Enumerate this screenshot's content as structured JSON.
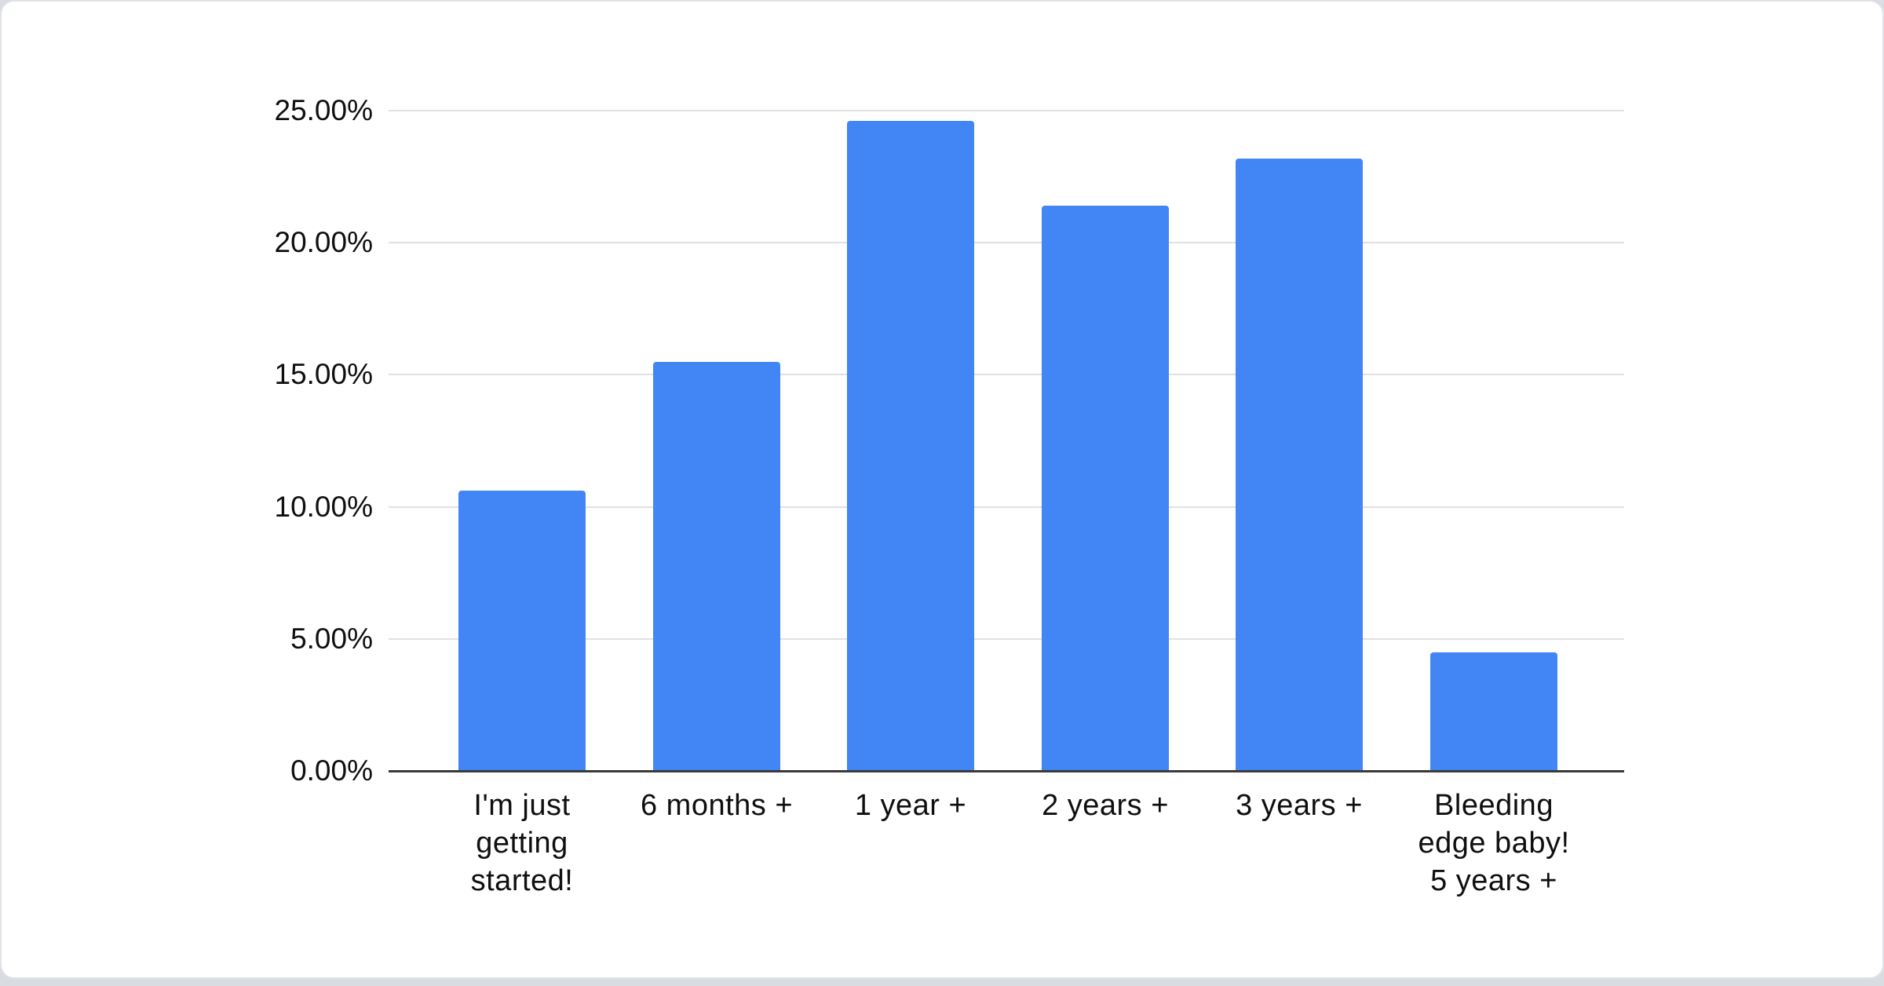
{
  "page": {
    "background_color": "#d9dce0",
    "card_background": "#ffffff",
    "card_border_color": "#dfe2e6"
  },
  "chart_data": {
    "type": "bar",
    "title": "",
    "xlabel": "",
    "ylabel": "",
    "categories": [
      "I'm just getting started!",
      "6 months +",
      "1 year +",
      "2 years +",
      "3 years +",
      "Bleeding edge baby! 5 years +"
    ],
    "values": [
      10.6,
      15.5,
      24.6,
      21.4,
      23.2,
      4.5
    ],
    "unit": "%",
    "ylim": [
      0,
      25
    ],
    "y_tick_step": 5,
    "y_tick_labels": [
      "0.00%",
      "5.00%",
      "10.00%",
      "15.00%",
      "20.00%",
      "25.00%"
    ],
    "grid": true,
    "legend": "none",
    "bar_color": "#4285f4",
    "gridline_color": "#e1e1e1",
    "axis_line_color": "#3a3a3a",
    "label_color": "#0f0f0f"
  }
}
